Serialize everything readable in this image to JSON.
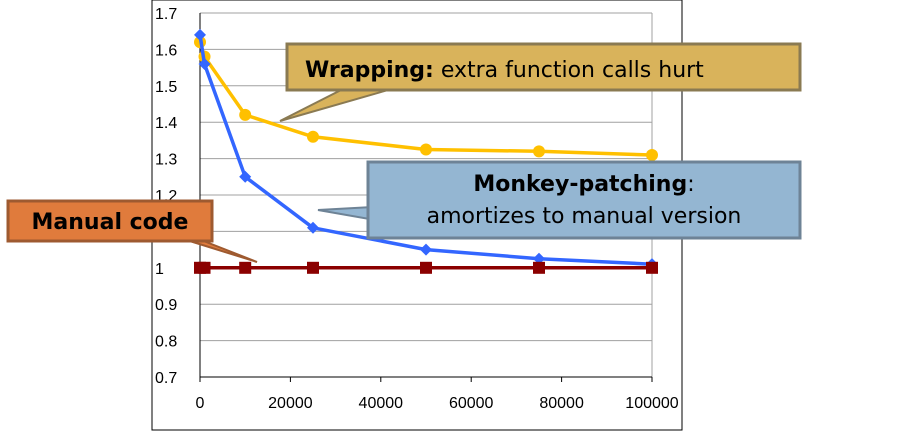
{
  "chart_data": {
    "type": "line",
    "x": [
      0,
      1000,
      10000,
      25000,
      50000,
      75000,
      100000
    ],
    "xlim": [
      0,
      100000
    ],
    "ylim": [
      0.7,
      1.7
    ],
    "x_ticks": [
      "0",
      "20000",
      "40000",
      "60000",
      "80000",
      "100000"
    ],
    "x_tick_values": [
      0,
      20000,
      40000,
      60000,
      80000,
      100000
    ],
    "y_ticks": [
      "0.7",
      "0.8",
      "0.9",
      "1",
      "1.1",
      "1.2",
      "1.3",
      "1.4",
      "1.5",
      "1.6",
      "1.7"
    ],
    "y_tick_values": [
      0.7,
      0.8,
      0.9,
      1.0,
      1.1,
      1.2,
      1.3,
      1.4,
      1.5,
      1.6,
      1.7
    ],
    "grid": true,
    "series": [
      {
        "values": [
          1.62,
          1.58,
          1.42,
          1.36,
          1.325,
          1.32,
          1.31
        ],
        "color": "#FFC000",
        "marker": "circle"
      },
      {
        "values": [
          1.64,
          1.56,
          1.25,
          1.11,
          1.05,
          1.025,
          1.01
        ],
        "color": "#3366FF",
        "marker": "diamond"
      },
      {
        "values": [
          1.0,
          1.0,
          1.0,
          1.0,
          1.0,
          1.0,
          1.0
        ],
        "color": "#8B0000",
        "marker": "square"
      }
    ],
    "annotations": {
      "wrapping_bold": "Wrapping:",
      "wrapping_rest": " extra function calls hurt",
      "monkey_line1": "Monkey-patching",
      "monkey_line1_suffix": ":",
      "monkey_line2": "amortizes to manual version",
      "manual": "Manual code"
    }
  },
  "colors": {
    "wrapping_box": "#D9B35B",
    "wrapping_border": "#8A7A52",
    "monkey_box": "#94B6D2",
    "monkey_border": "#6E8396",
    "manual_box": "#E07B3C",
    "manual_border": "#9E5A30",
    "grid": "#A0A0A0"
  }
}
